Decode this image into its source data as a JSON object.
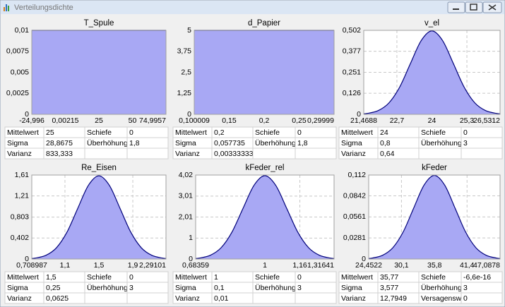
{
  "window": {
    "title": "Verteilungsdichte"
  },
  "chart_data": [
    {
      "type": "area",
      "title": "T_Spule",
      "color": "#a8a8f4",
      "grid": true,
      "x": [
        -24.996,
        74.9957
      ],
      "values": [
        0.01,
        0.01
      ],
      "xlim": [
        -24.996,
        74.9957
      ],
      "ylim": [
        0,
        0.01
      ],
      "xticks": [
        {
          "value": -24.996,
          "label": "-24,996"
        },
        {
          "value": 0.00215,
          "label": "0,00215"
        },
        25,
        50,
        {
          "value": 74.9957,
          "label": "74,9957"
        }
      ],
      "yticks": [
        0,
        {
          "value": 0.0025,
          "label": "0,0025"
        },
        {
          "value": 0.005,
          "label": "0,005"
        },
        {
          "value": 0.0075,
          "label": "0,0075"
        },
        {
          "value": 0.01,
          "label": "0,01"
        }
      ]
    },
    {
      "type": "area",
      "title": "d_Papier",
      "color": "#a8a8f4",
      "grid": true,
      "x": [
        0.100009,
        0.29999
      ],
      "values": [
        5,
        5
      ],
      "xlim": [
        0.100009,
        0.29999
      ],
      "ylim": [
        0,
        5
      ],
      "xticks": [
        {
          "value": 0.100009,
          "label": "0,100009"
        },
        {
          "value": 0.15,
          "label": "0,15"
        },
        {
          "value": 0.2,
          "label": "0,2"
        },
        {
          "value": 0.25,
          "label": "0,25"
        },
        {
          "value": 0.29999,
          "label": "0,29999"
        }
      ],
      "yticks": [
        0,
        {
          "value": 1.25,
          "label": "1,25"
        },
        {
          "value": 2.5,
          "label": "2,5"
        },
        {
          "value": 3.75,
          "label": "3,75"
        },
        5
      ]
    },
    {
      "type": "area",
      "title": "v_el",
      "color": "#a8a8f4",
      "grid": true,
      "x": [
        21.4688,
        21.6,
        22,
        22.4,
        22.8,
        23.2,
        23.6,
        24,
        24.4,
        24.8,
        25.2,
        25.6,
        26,
        26.4,
        26.5312
      ],
      "values": [
        0.0033,
        0.0055,
        0.0219,
        0.0675,
        0.1619,
        0.3025,
        0.4401,
        0.4987,
        0.4401,
        0.3025,
        0.1619,
        0.0675,
        0.0219,
        0.0055,
        0.0033
      ],
      "xlim": [
        21.4688,
        26.5312
      ],
      "ylim": [
        0,
        0.502
      ],
      "xticks": [
        {
          "value": 21.4688,
          "label": "21,4688"
        },
        {
          "value": 22.7,
          "label": "22,7"
        },
        24,
        {
          "value": 25.3,
          "label": "25,3"
        },
        {
          "value": 26.5312,
          "label": "26,5312"
        }
      ],
      "yticks": [
        0,
        {
          "value": 0.126,
          "label": "0,126"
        },
        {
          "value": 0.251,
          "label": "0,251"
        },
        {
          "value": 0.377,
          "label": "0,377"
        },
        {
          "value": 0.502,
          "label": "0,502"
        }
      ]
    },
    {
      "type": "area",
      "title": "Re_Eisen",
      "color": "#a8a8f4",
      "grid": true,
      "x": [
        0.708987,
        0.75,
        0.875,
        1,
        1.125,
        1.25,
        1.375,
        1.5,
        1.625,
        1.75,
        1.875,
        2,
        2.125,
        2.25,
        2.29101
      ],
      "values": [
        0.0106,
        0.0177,
        0.0701,
        0.216,
        0.5181,
        0.9679,
        1.4083,
        1.5958,
        1.4083,
        0.9679,
        0.5181,
        0.216,
        0.0701,
        0.0177,
        0.0106
      ],
      "xlim": [
        0.708987,
        2.29101
      ],
      "ylim": [
        0,
        1.61
      ],
      "xticks": [
        {
          "value": 0.708987,
          "label": "0,708987"
        },
        {
          "value": 1.1,
          "label": "1,1"
        },
        {
          "value": 1.5,
          "label": "1,5"
        },
        {
          "value": 1.9,
          "label": "1,9"
        },
        {
          "value": 2.29101,
          "label": "2,29101"
        }
      ],
      "yticks": [
        0,
        {
          "value": 0.402,
          "label": "0,402"
        },
        {
          "value": 0.803,
          "label": "0,803"
        },
        {
          "value": 1.21,
          "label": "1,21"
        },
        {
          "value": 1.61,
          "label": "1,61"
        }
      ]
    },
    {
      "type": "area",
      "title": "kFeder_rel",
      "color": "#a8a8f4",
      "grid": true,
      "x": [
        0.68359,
        0.7,
        0.75,
        0.8,
        0.85,
        0.9,
        0.95,
        1,
        1.05,
        1.1,
        1.15,
        1.2,
        1.25,
        1.3,
        1.31641
      ],
      "values": [
        0.0266,
        0.0443,
        0.1753,
        0.5399,
        1.2952,
        2.4197,
        3.5207,
        3.9894,
        3.5207,
        2.4197,
        1.2952,
        0.5399,
        0.1753,
        0.0443,
        0.0266
      ],
      "xlim": [
        0.68359,
        1.31641
      ],
      "ylim": [
        0,
        4.02
      ],
      "xticks": [
        {
          "value": 0.68359,
          "label": "0,68359"
        },
        1,
        {
          "value": 1.16,
          "label": "1,16"
        },
        {
          "value": 1.31641,
          "label": "1,31641"
        }
      ],
      "yticks": [
        0,
        1,
        {
          "value": 2.01,
          "label": "2,01"
        },
        {
          "value": 3.01,
          "label": "3,01"
        },
        {
          "value": 4.02,
          "label": "4,02"
        }
      ]
    },
    {
      "type": "area",
      "title": "kFeder",
      "color": "#a8a8f4",
      "grid": true,
      "x": [
        24.4522,
        25.039,
        26.8275,
        28.616,
        30.4045,
        32.193,
        33.9815,
        35.77,
        37.5585,
        39.347,
        41.1355,
        42.924,
        44.7125,
        46.501,
        47.0878
      ],
      "values": [
        0.000744,
        0.001238,
        0.004901,
        0.01509,
        0.03621,
        0.06765,
        0.09843,
        0.11153,
        0.09843,
        0.06765,
        0.03621,
        0.01509,
        0.004901,
        0.001238,
        0.000744
      ],
      "xlim": [
        24.4522,
        47.0878
      ],
      "ylim": [
        0,
        0.112
      ],
      "xticks": [
        {
          "value": 24.4522,
          "label": "24,4522"
        },
        {
          "value": 30.1,
          "label": "30,1"
        },
        {
          "value": 35.8,
          "label": "35,8"
        },
        {
          "value": 41.4,
          "label": "41,4"
        },
        {
          "value": 47.0878,
          "label": "47,0878"
        }
      ],
      "yticks": [
        0,
        {
          "value": 0.0281,
          "label": "0,0281"
        },
        {
          "value": 0.0561,
          "label": "0,0561"
        },
        {
          "value": 0.0842,
          "label": "0,0842"
        },
        {
          "value": 0.112,
          "label": "0,112"
        }
      ]
    }
  ],
  "stats": [
    {
      "rows": [
        [
          "Mittelwert",
          "25",
          "Schiefe",
          "0"
        ],
        [
          "Sigma",
          "28,8675",
          "Überhöhung",
          "1,8"
        ],
        [
          "Varianz",
          "833,333"
        ]
      ]
    },
    {
      "rows": [
        [
          "Mittelwert",
          "0,2",
          "Schiefe",
          "0"
        ],
        [
          "Sigma",
          "0,057735",
          "Überhöhung",
          "1,8"
        ],
        [
          "Varianz",
          "0,00333333"
        ]
      ]
    },
    {
      "rows": [
        [
          "Mittelwert",
          "24",
          "Schiefe",
          "0"
        ],
        [
          "Sigma",
          "0,8",
          "Überhöhung",
          "3"
        ],
        [
          "Varianz",
          "0,64"
        ]
      ]
    },
    {
      "rows": [
        [
          "Mittelwert",
          "1,5",
          "Schiefe",
          "0"
        ],
        [
          "Sigma",
          "0,25",
          "Überhöhung",
          "3"
        ],
        [
          "Varianz",
          "0,0625"
        ]
      ]
    },
    {
      "rows": [
        [
          "Mittelwert",
          "1",
          "Schiefe",
          "0"
        ],
        [
          "Sigma",
          "0,1",
          "Überhöhung",
          "3"
        ],
        [
          "Varianz",
          "0,01"
        ]
      ]
    },
    {
      "rows": [
        [
          "Mittelwert",
          "35,77",
          "Schiefe",
          "-6,6e-16"
        ],
        [
          "Sigma",
          "3,577",
          "Überhöhung",
          "3"
        ],
        [
          "Varianz",
          "12,7949",
          "Versagenswa",
          "0"
        ]
      ]
    }
  ]
}
